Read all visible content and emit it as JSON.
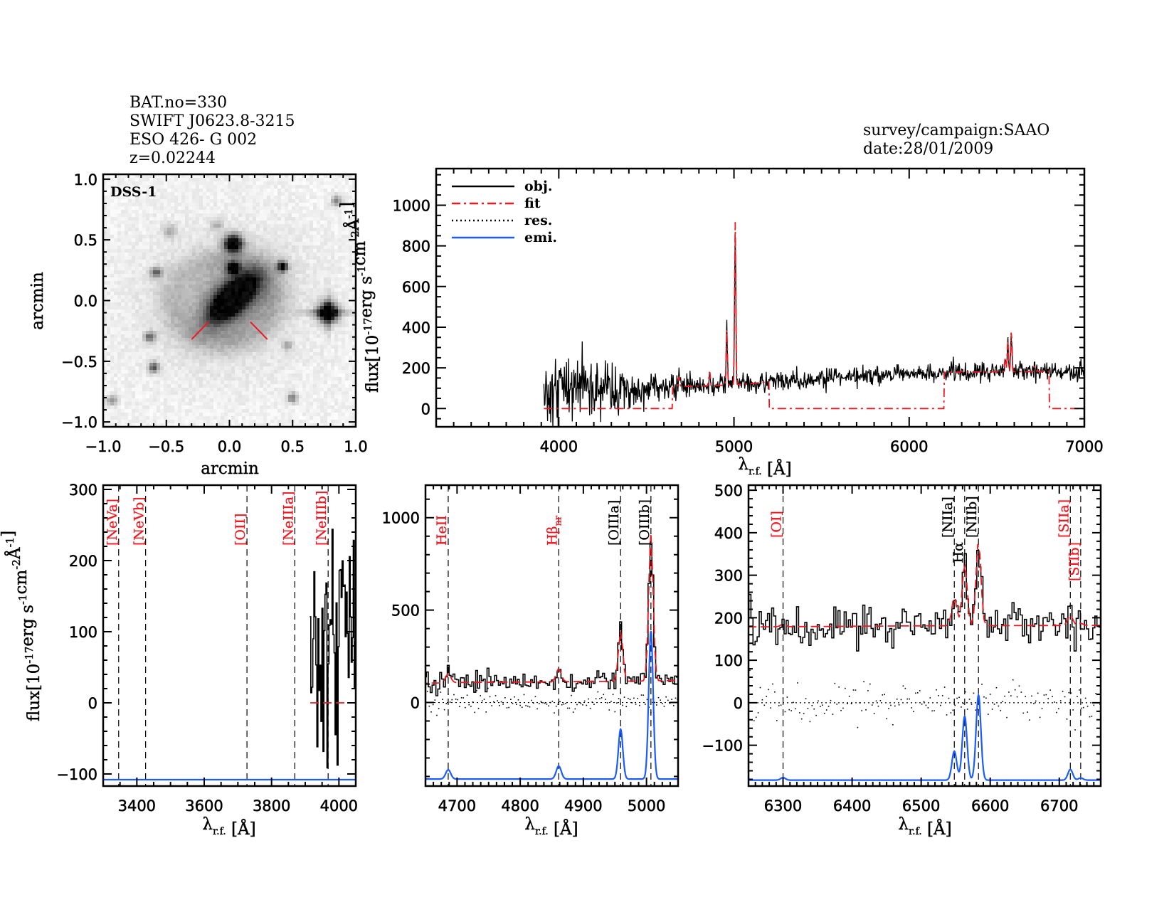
{
  "header": {
    "object_lines": [
      "BAT.no=330",
      "SWIFT J0623.8-3215",
      "ESO 426- G 002",
      "z=0.02244"
    ],
    "survey": "survey/campaign:SAAO",
    "date": "date:28/01/2009"
  },
  "colors": {
    "obj": "#000000",
    "fit": "#f01820",
    "res": "#000000",
    "emi": "#1a5cff",
    "undetected_label": "#f01820",
    "detected_label": "#000000"
  },
  "flux_label_parts": [
    {
      "t": "flux[10"
    },
    {
      "t": "-17",
      "sup": true
    },
    {
      "t": "erg s"
    },
    {
      "t": "-1",
      "sup": true
    },
    {
      "t": "cm"
    },
    {
      "t": "-2",
      "sup": true
    },
    {
      "t": "Å"
    },
    {
      "t": "-1",
      "sup": true
    },
    {
      "t": "]"
    }
  ],
  "lambda_label_parts": [
    {
      "t": "λ"
    },
    {
      "t": "r.f.",
      "sub": true
    },
    {
      "t": " [Å]"
    }
  ],
  "chart_data": [
    {
      "type": "image",
      "label": "DSS-1",
      "xlabel": "arcmin",
      "ylabel": "arcmin",
      "xlim": [
        -1.0,
        1.0
      ],
      "ylim": [
        -1.04,
        1.04
      ],
      "xticks": [
        -1.0,
        -0.5,
        0.0,
        0.5,
        1.0
      ],
      "xtick_labels": [
        "−1.0",
        "−0.5",
        "0.0",
        "0.5",
        "1.0"
      ],
      "yticks": [
        -1.0,
        -0.5,
        0.0,
        0.5,
        1.0
      ],
      "ytick_labels": [
        "−1.0",
        "−0.5",
        "0.0",
        "0.5",
        "1.0"
      ],
      "minor": [
        0.1,
        0.1
      ]
    },
    {
      "type": "line",
      "xlabel": "lambda",
      "ylabel": "flux",
      "xlim": [
        3300,
        7000
      ],
      "ylim": [
        -90,
        1180
      ],
      "xticks": [
        4000,
        5000,
        6000,
        7000
      ],
      "xtick_labels": [
        "4000",
        "5000",
        "6000",
        "7000"
      ],
      "yticks": [
        0,
        200,
        400,
        600,
        800,
        1000
      ],
      "ytick_labels": [
        "0",
        "200",
        "400",
        "600",
        "800",
        "1000"
      ],
      "minor": [
        100,
        50
      ],
      "legend": [
        {
          "label": "obj.",
          "key": "obj"
        },
        {
          "label": "fit",
          "key": "fit"
        },
        {
          "label": "res.",
          "key": "res"
        },
        {
          "label": "emi.",
          "key": "emi"
        }
      ],
      "legend_position": "top-left",
      "show_residuals": false,
      "spectrum": {
        "sampling_A": 3,
        "range": [
          3915,
          7000
        ],
        "obj_continuum": [
          [
            3915,
            50
          ],
          [
            4000,
            80
          ],
          [
            4300,
            95
          ],
          [
            4450,
            80
          ],
          [
            4550,
            100
          ],
          [
            4700,
            110
          ],
          [
            5000,
            118
          ],
          [
            5300,
            140
          ],
          [
            5700,
            160
          ],
          [
            6000,
            175
          ],
          [
            6200,
            180
          ],
          [
            6500,
            183
          ],
          [
            7000,
            185
          ]
        ],
        "obj_noise_rms": [
          [
            3915,
            110
          ],
          [
            4000,
            85
          ],
          [
            4300,
            65
          ],
          [
            4450,
            40
          ],
          [
            4700,
            30
          ],
          [
            5000,
            27
          ],
          [
            6000,
            22
          ],
          [
            7000,
            22
          ]
        ],
        "fit_windows": [
          [
            4650,
            5200
          ],
          [
            6200,
            6800
          ]
        ],
        "emission_lines": [
          {
            "name": "HeII",
            "center": 4686,
            "amplitude": 50,
            "sigma": 4
          },
          {
            "name": "Hb_nr",
            "center": 4861,
            "amplitude": 70,
            "sigma": 4
          },
          {
            "name": "[OIIIa]",
            "center": 4959,
            "amplitude": 270,
            "sigma": 3.5
          },
          {
            "name": "[OIIIb]",
            "center": 5007,
            "amplitude": 800,
            "sigma": 3.5
          },
          {
            "name": "[OI]",
            "center": 6300,
            "amplitude": 6,
            "sigma": 3.5
          },
          {
            "name": "[NIIa]",
            "center": 6548,
            "amplitude": 68,
            "sigma": 3.5
          },
          {
            "name": "Ha",
            "center": 6563,
            "amplitude": 150,
            "sigma": 3.5
          },
          {
            "name": "[NIIb]",
            "center": 6583,
            "amplitude": 200,
            "sigma": 3.5
          },
          {
            "name": "[SIIa]",
            "center": 6716,
            "amplitude": 25,
            "sigma": 3.5
          },
          {
            "name": "[SIIb]",
            "center": 6731,
            "amplitude": 5,
            "sigma": 3.5
          }
        ]
      }
    },
    {
      "type": "line",
      "xlim": [
        3300,
        4050
      ],
      "ylim": [
        -117,
        306
      ],
      "xticks": [
        3400,
        3600,
        3800,
        4000
      ],
      "xtick_labels": [
        "3400",
        "3600",
        "3800",
        "4000"
      ],
      "yticks": [
        -100,
        0,
        100,
        200,
        300
      ],
      "ytick_labels": [
        "−100",
        "0",
        "100",
        "200",
        "300"
      ],
      "minor": [
        50,
        20
      ],
      "emi_offset": -108,
      "show_residuals": false,
      "markers": [
        {
          "wavelength": 3346,
          "label": "[NeVa]",
          "detected": false
        },
        {
          "wavelength": 3426,
          "label": "[NeVb]",
          "detected": false
        },
        {
          "wavelength": 3727,
          "label": "[OII]",
          "detected": false
        },
        {
          "wavelength": 3869,
          "label": "[NeIIIa]",
          "detected": false
        },
        {
          "wavelength": 3968,
          "label": "[NeIIIb]",
          "detected": false
        }
      ]
    },
    {
      "type": "line",
      "xlim": [
        4650,
        5050
      ],
      "ylim": [
        -452,
        1176
      ],
      "xticks": [
        4700,
        4800,
        4900,
        5000
      ],
      "xtick_labels": [
        "4700",
        "4800",
        "4900",
        "5000"
      ],
      "yticks": [
        0,
        500,
        1000
      ],
      "ytick_labels": [
        "0",
        "500",
        "1000"
      ],
      "minor": [
        12.5,
        100
      ],
      "emi_offset": -414,
      "show_residuals": true,
      "markers": [
        {
          "wavelength": 4686,
          "label": "HeII",
          "detected": false
        },
        {
          "wavelength": 4861,
          "label": "Hβ",
          "sub": "nr",
          "detected": false
        },
        {
          "wavelength": 4959,
          "label": "[OIIIa]",
          "detected": true
        },
        {
          "wavelength": 5007,
          "label": "[OIIIb]",
          "detected": true
        }
      ]
    },
    {
      "type": "line",
      "xlim": [
        6250,
        6760
      ],
      "ylim": [
        -196,
        512
      ],
      "xticks": [
        6300,
        6400,
        6500,
        6600,
        6700
      ],
      "xtick_labels": [
        "6300",
        "6400",
        "6500",
        "6600",
        "6700"
      ],
      "yticks": [
        -100,
        0,
        100,
        200,
        300,
        400,
        500
      ],
      "ytick_labels": [
        "−100",
        "0",
        "100",
        "200",
        "300",
        "400",
        "500"
      ],
      "minor": [
        10,
        20
      ],
      "emi_offset": -182,
      "show_residuals": true,
      "markers": [
        {
          "wavelength": 6300,
          "label": "[OI]",
          "detected": false
        },
        {
          "wavelength": 6548,
          "label": "[NIIa]",
          "detected": true
        },
        {
          "wavelength": 6563,
          "label": "Hα",
          "detected": true
        },
        {
          "wavelength": 6583,
          "label": "[NIIb]",
          "detected": true
        },
        {
          "wavelength": 6716,
          "label": "[SIIa]",
          "detected": false
        },
        {
          "wavelength": 6731,
          "label": "[SIIb]",
          "detected": false
        }
      ]
    }
  ]
}
